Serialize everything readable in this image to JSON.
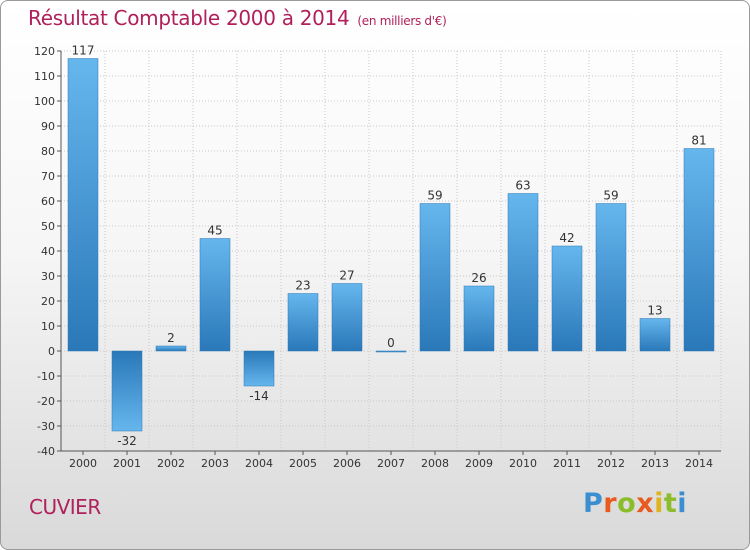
{
  "chart_data": {
    "type": "bar",
    "title": "Résultat Comptable 2000 à 2014",
    "subtitle": "(en milliers d'€)",
    "categories": [
      "2000",
      "2001",
      "2002",
      "2003",
      "2004",
      "2005",
      "2006",
      "2007",
      "2008",
      "2009",
      "2010",
      "2011",
      "2012",
      "2013",
      "2014"
    ],
    "values": [
      117,
      -32,
      2,
      45,
      -14,
      23,
      27,
      0,
      59,
      26,
      63,
      42,
      59,
      13,
      81
    ],
    "ylim": [
      -40,
      120
    ],
    "yticks": [
      -40,
      -30,
      -20,
      -10,
      0,
      10,
      20,
      30,
      40,
      50,
      60,
      70,
      80,
      90,
      100,
      110,
      120
    ],
    "grid": true,
    "xlabel": "",
    "ylabel": ""
  },
  "commune": "CUVIER",
  "logo": {
    "text": "Proxiti"
  },
  "colors": {
    "bar_light": "#62b3ec",
    "bar_dark": "#2d7dbc",
    "title": "#b0205a",
    "grid": "#c8c8c8"
  }
}
